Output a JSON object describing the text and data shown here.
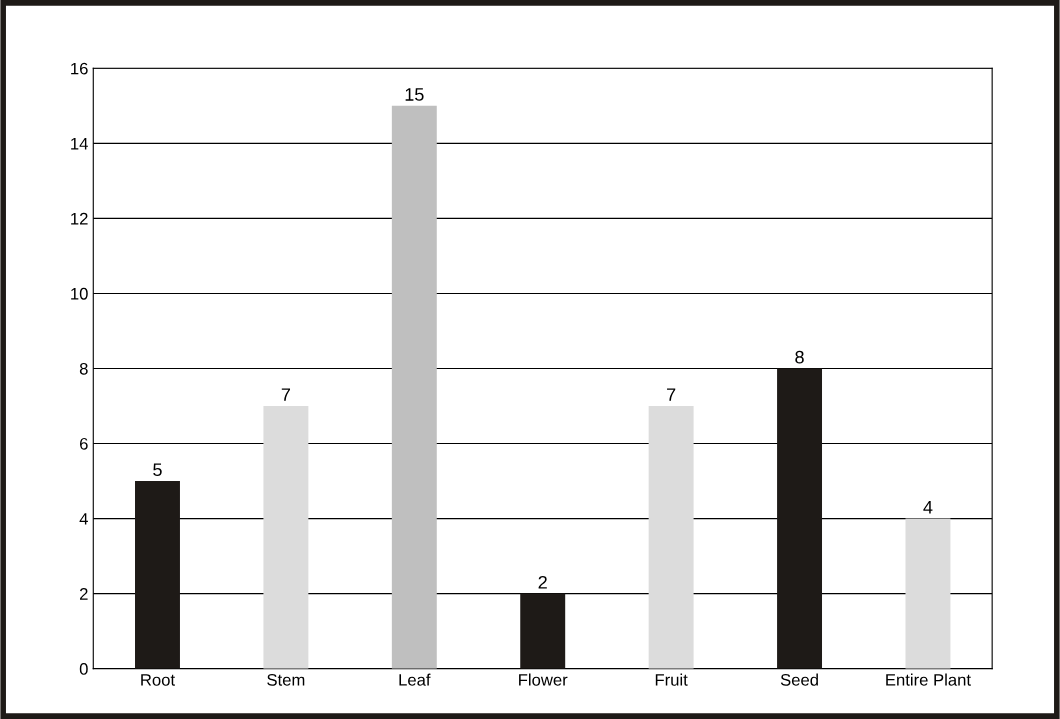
{
  "chart_data": {
    "type": "bar",
    "categories": [
      "Root",
      "Stem",
      "Leaf",
      "Flower",
      "Fruit",
      "Seed",
      "Entire Plant"
    ],
    "values": [
      5,
      7,
      15,
      2,
      7,
      8,
      4
    ],
    "colors": [
      "#1e1a17",
      "#dcdcdc",
      "#bfbfbf",
      "#1e1a17",
      "#dcdcdc",
      "#1e1a17",
      "#dcdcdc"
    ],
    "ylim": [
      0,
      16
    ],
    "yticks": [
      0,
      2,
      4,
      6,
      8,
      10,
      12,
      14,
      16
    ],
    "grid": "y",
    "data_labels": true
  }
}
